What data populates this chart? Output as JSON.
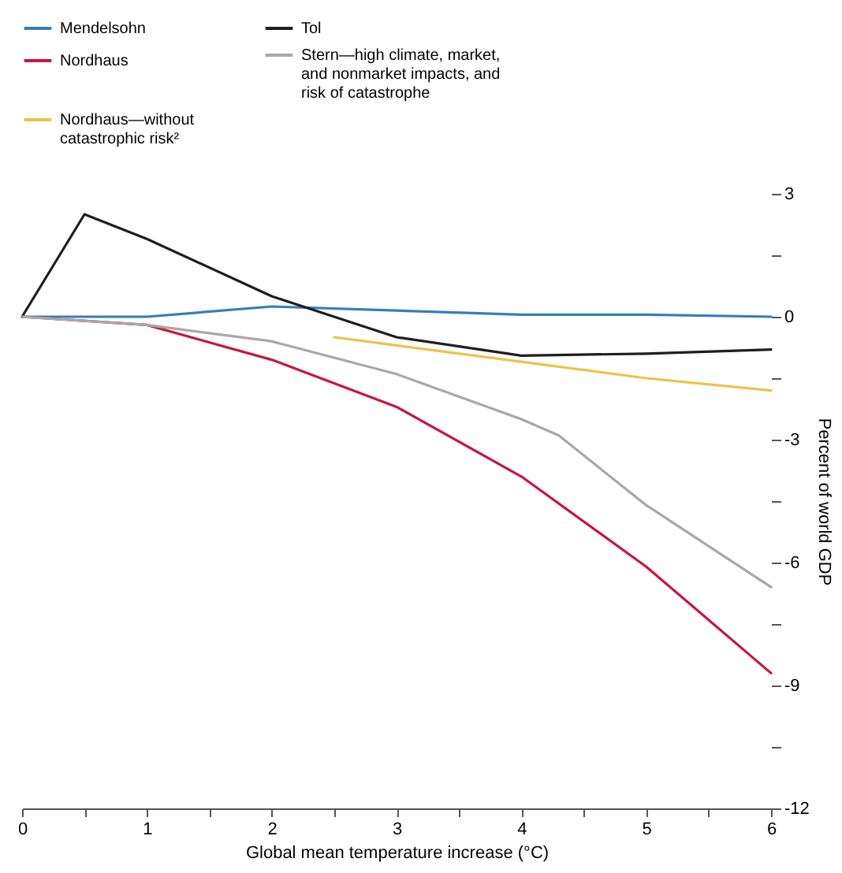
{
  "chart_data": {
    "type": "line",
    "xlabel": "Global mean temperature increase (°C)",
    "ylabel": "Percent of world GDP",
    "xlim": [
      0,
      6
    ],
    "xticks": [
      0,
      {
        "value": 0.5,
        "label": null
      },
      1,
      {
        "value": 1.5,
        "label": null
      },
      2,
      {
        "value": 2.5,
        "label": null
      },
      3,
      {
        "value": 3.5,
        "label": null
      },
      4,
      {
        "value": 4.5,
        "label": null
      },
      5,
      {
        "value": 5.5,
        "label": null
      },
      6
    ],
    "ylim": [
      -12,
      3
    ],
    "yticks": [
      -12,
      {
        "value": -10.5,
        "label": null
      },
      -9,
      {
        "value": -7.5,
        "label": null
      },
      -6,
      {
        "value": -4.5,
        "label": null
      },
      -3,
      {
        "value": -1.5,
        "label": null
      },
      0,
      {
        "value": 1.5,
        "label": null
      },
      3
    ],
    "legend": "top",
    "grid": false,
    "line_style": "solid",
    "marker": "none",
    "series": [
      {
        "name": "Mendelsohn",
        "color": "#2f7fc1",
        "x": [
          0,
          1,
          2,
          3,
          4,
          5,
          6
        ],
        "values": [
          0,
          0,
          0.25,
          0.15,
          0.05,
          0.05,
          0
        ]
      },
      {
        "name": "Tol",
        "color": "#1e1e1e",
        "x": [
          0,
          0.5,
          1,
          2,
          3,
          4,
          5,
          6
        ],
        "values": [
          0,
          2.5,
          1.9,
          0.5,
          -0.5,
          -0.95,
          -0.9,
          -0.8
        ]
      },
      {
        "name": "Nordhaus",
        "color": "#c8163c",
        "x": [
          0,
          1,
          2,
          3,
          4,
          5,
          6
        ],
        "values": [
          0,
          -0.2,
          -1.05,
          -2.2,
          -3.9,
          -6.1,
          -8.7
        ]
      },
      {
        "name": "Stern—high climate, market, and nonmarket impacts, and risk of catastrophe",
        "color": "#a8a8a8",
        "x": [
          0,
          1,
          2,
          3,
          4,
          4.3,
          5,
          6
        ],
        "values": [
          0,
          -0.2,
          -0.6,
          -1.4,
          -2.5,
          -2.9,
          -4.6,
          -6.6
        ]
      },
      {
        "name": "Nordhaus—without catastrophic risk²",
        "color": "#f0c04a",
        "x": [
          2.5,
          3,
          4,
          5,
          6
        ],
        "values": [
          -0.5,
          -0.7,
          -1.1,
          -1.5,
          -1.8
        ]
      }
    ]
  }
}
